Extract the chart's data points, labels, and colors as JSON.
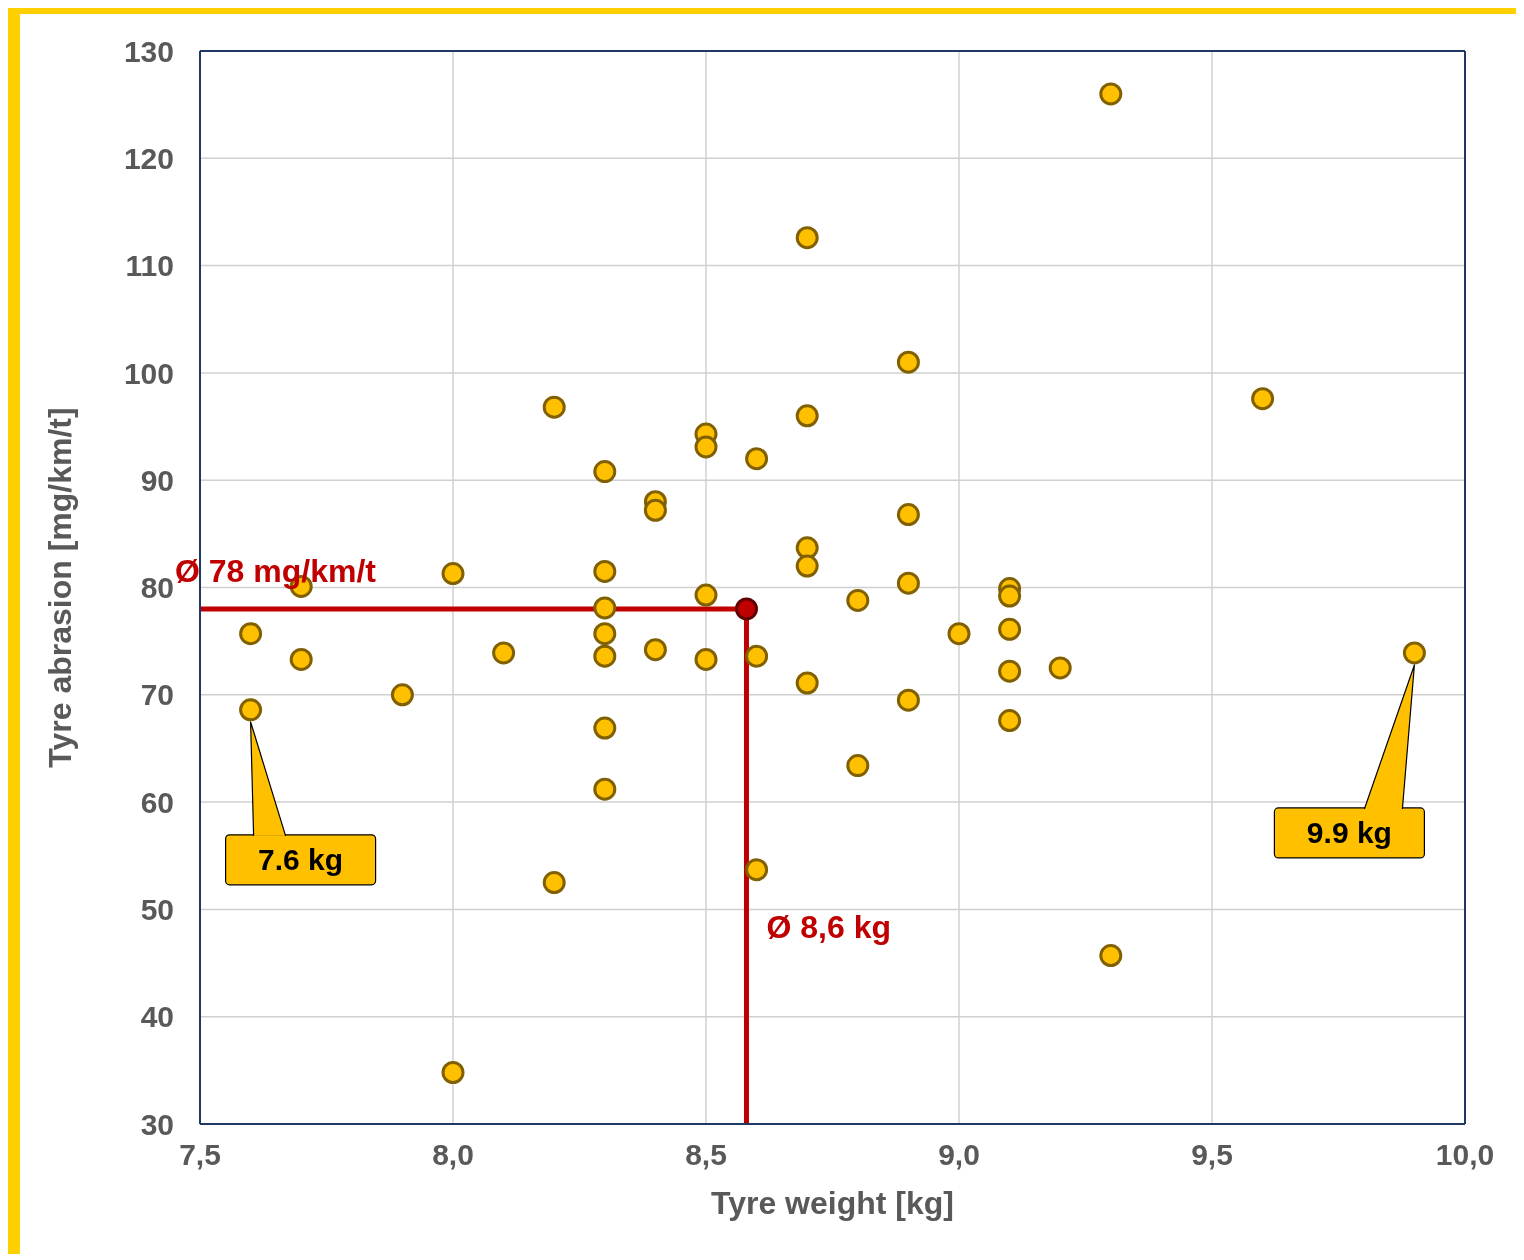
{
  "chart_data": {
    "type": "scatter",
    "xlabel": "Tyre weight [kg]",
    "ylabel": "Tyre abrasion [mg/km/t]",
    "xlim": [
      7.5,
      10.0
    ],
    "xticks": [
      {
        "value": 7.5,
        "label": "7,5"
      },
      {
        "value": 8.0,
        "label": "8,0"
      },
      {
        "value": 8.5,
        "label": "8,5"
      },
      {
        "value": 9.0,
        "label": "9,0"
      },
      {
        "value": 9.5,
        "label": "9,5"
      },
      {
        "value": 10.0,
        "label": "10,0"
      }
    ],
    "ylim": [
      30,
      130
    ],
    "yticks": [
      30,
      40,
      50,
      60,
      70,
      80,
      90,
      100,
      110,
      120,
      130
    ],
    "grid": true,
    "marker": "circle",
    "series": [
      {
        "color": "#ffc000",
        "x": [
          9.3,
          8.7,
          8.9,
          9.6,
          8.2,
          8.7,
          8.5,
          8.5,
          8.6,
          8.3,
          8.4,
          8.4,
          8.9,
          8.7,
          8.7,
          8.3,
          8.0,
          7.7,
          8.9,
          9.1,
          9.1,
          8.5,
          8.8,
          8.3,
          7.6,
          8.3,
          9.0,
          9.1,
          8.4,
          8.1,
          9.9,
          7.7,
          8.3,
          8.5,
          8.6,
          9.2,
          9.1,
          7.9,
          8.7,
          8.9,
          7.6,
          9.1,
          8.3,
          8.8,
          8.3,
          8.6,
          8.2,
          9.3,
          8.0
        ],
        "values": [
          126,
          112.6,
          101,
          97.6,
          96.8,
          96,
          94.3,
          93.1,
          92,
          90.8,
          88,
          87.2,
          86.8,
          83.7,
          82,
          81.5,
          81.3,
          80.1,
          80.4,
          79.9,
          79.2,
          79.3,
          78.8,
          78.1,
          75.7,
          75.7,
          75.7,
          76.1,
          74.2,
          73.9,
          73.9,
          73.3,
          73.6,
          73.3,
          73.6,
          72.5,
          72.2,
          70,
          71.1,
          69.5,
          68.6,
          67.6,
          66.9,
          63.4,
          61.2,
          53.7,
          52.5,
          45.7,
          34.8
        ]
      },
      {
        "color": "#c00000",
        "x": [
          8.58
        ],
        "values": [
          78
        ]
      }
    ],
    "ref_lines": [
      {
        "axis": "y",
        "value": 78,
        "label": "Ø 78 mg/km/t",
        "color": "#c00000"
      },
      {
        "axis": "x",
        "value": 8.58,
        "label": "Ø 8,6 kg",
        "color": "#c00000"
      }
    ],
    "annotations": [
      "7.6 kg",
      "9.9 kg"
    ]
  }
}
